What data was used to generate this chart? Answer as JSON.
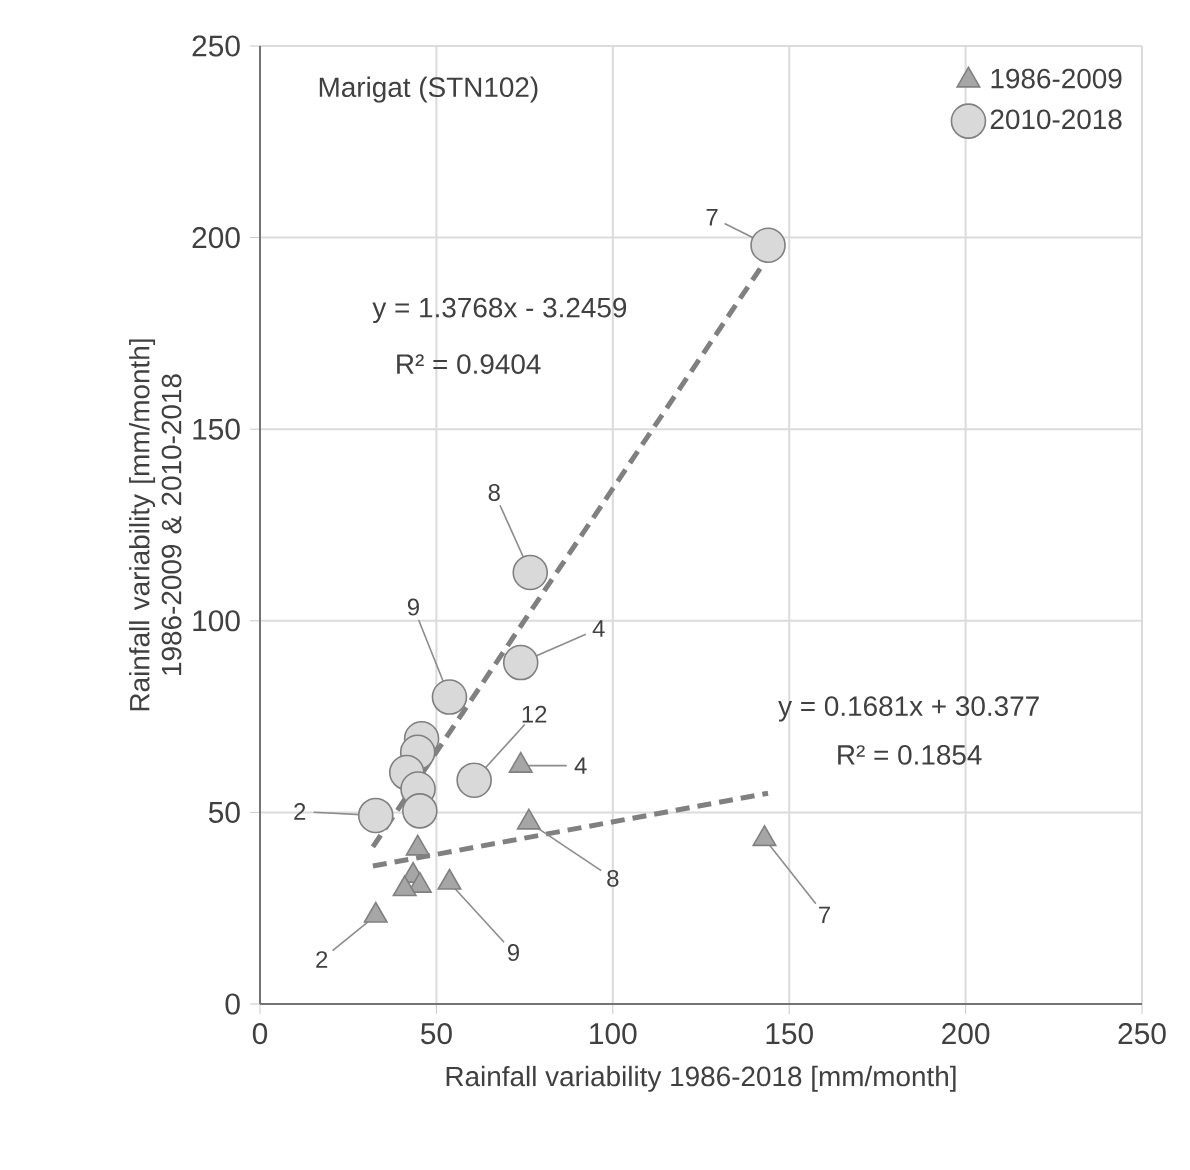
{
  "chart_data": {
    "type": "scatter",
    "title": "Marigat (STN102)",
    "xlabel": "Rainfall variability 1986-2018 [mm/month]",
    "ylabel": "Rainfall variability [mm/month] 1986-2009 & 2010-2018",
    "xlim": [
      0,
      250
    ],
    "ylim": [
      0,
      250
    ],
    "xticks": [
      0,
      50,
      100,
      150,
      200,
      250
    ],
    "yticks": [
      0,
      50,
      100,
      150,
      200,
      250
    ],
    "grid": true,
    "legend": "top right",
    "series": [
      {
        "name": "1986-2009",
        "color": "#a6a6a6",
        "marker": "triangle",
        "x": [
          143,
          73.9,
          76.2,
          44.7,
          43.4,
          45.3,
          41,
          53.7,
          32.8
        ],
        "values": [
          43.1,
          62.2,
          47.4,
          40.6,
          33.5,
          30.9,
          30,
          31.7,
          23.1
        ]
      },
      {
        "name": "2010-2018",
        "color": "#d9d9d9",
        "marker": "circle",
        "x": [
          144,
          76.6,
          73.9,
          53.7,
          60.7,
          32.8,
          45.8,
          44.7,
          41.6,
          44.8,
          45.3
        ],
        "values": [
          198,
          112.6,
          89.1,
          80.1,
          58.4,
          49.2,
          69.2,
          65.7,
          60.4,
          56.1,
          50.4
        ]
      },
      {
        "type": "line",
        "color": "#808080",
        "line_style": "dashed",
        "marker": "none",
        "x": [
          32,
          144
        ],
        "values": [
          41,
          195
        ]
      },
      {
        "type": "line",
        "color": "#808080",
        "line_style": "dashed",
        "marker": "none",
        "x": [
          32,
          144
        ],
        "values": [
          36,
          55
        ]
      }
    ],
    "annotations": [
      {
        "text": "7",
        "x": 144,
        "y": 198
      },
      {
        "text": "8",
        "x": 76.6,
        "y": 112.6
      },
      {
        "text": "4",
        "x": 73.9,
        "y": 89.1
      },
      {
        "text": "9",
        "x": 53.7,
        "y": 80.1
      },
      {
        "text": "12",
        "x": 60.7,
        "y": 58.4
      },
      {
        "text": "2",
        "x": 32.8,
        "y": 49.2
      },
      {
        "text": "4",
        "x": 73.9,
        "y": 62.2
      },
      {
        "text": "8",
        "x": 76.2,
        "y": 47.4
      },
      {
        "text": "9",
        "x": 53.7,
        "y": 31.7
      },
      {
        "text": "2",
        "x": 32.8,
        "y": 23.1
      },
      {
        "text": "7",
        "x": 143,
        "y": 43.1
      },
      "y = 1.3768x - 3.2459",
      "R² = 0.9404",
      "y = 0.1681x + 30.377",
      "R² = 0.1854"
    ]
  }
}
